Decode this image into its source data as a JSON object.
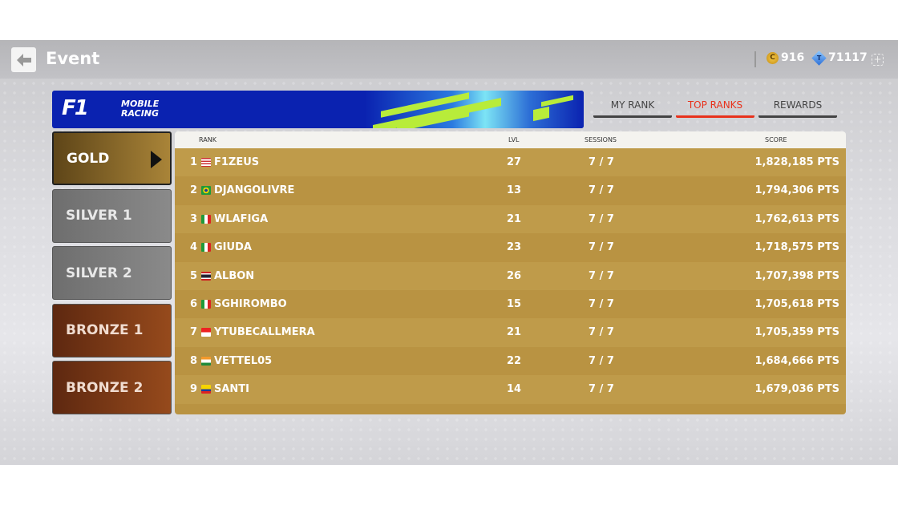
{
  "header": {
    "title": "Event",
    "coins": "916",
    "tokens": "71117",
    "coin_icon": "coin-icon",
    "token_icon": "token-icon"
  },
  "banner": {
    "logo_text": "F1 MOBILE RACING"
  },
  "tabs": [
    {
      "label": "MY RANK",
      "active": false
    },
    {
      "label": "TOP RANKS",
      "active": true
    },
    {
      "label": "REWARDS",
      "active": false
    }
  ],
  "accent": "#e8321c",
  "tiers": [
    {
      "label": "GOLD",
      "selected": true
    },
    {
      "label": "SILVER 1"
    },
    {
      "label": "SILVER 2"
    },
    {
      "label": "BRONZE 1"
    },
    {
      "label": "BRONZE 2"
    }
  ],
  "table": {
    "columns": {
      "rank": "RANK",
      "lvl": "LVL",
      "sessions": "SESSIONS",
      "score": "SCORE"
    },
    "rows": [
      {
        "rank": "1",
        "country": "US",
        "name": "F1ZEUS",
        "lvl": "27",
        "sessions": "7 / 7",
        "score": "1,828,185 PTS"
      },
      {
        "rank": "2",
        "country": "BR",
        "name": "DJANGOLIVRE",
        "lvl": "13",
        "sessions": "7 / 7",
        "score": "1,794,306 PTS"
      },
      {
        "rank": "3",
        "country": "IT",
        "name": "WLAFIGA",
        "lvl": "21",
        "sessions": "7 / 7",
        "score": "1,762,613 PTS"
      },
      {
        "rank": "4",
        "country": "IT",
        "name": "GIUDA",
        "lvl": "23",
        "sessions": "7 / 7",
        "score": "1,718,575 PTS"
      },
      {
        "rank": "5",
        "country": "TH",
        "name": "ALBON",
        "lvl": "26",
        "sessions": "7 / 7",
        "score": "1,707,398 PTS"
      },
      {
        "rank": "6",
        "country": "IT",
        "name": "SGHIROMBO",
        "lvl": "15",
        "sessions": "7 / 7",
        "score": "1,705,618 PTS"
      },
      {
        "rank": "7",
        "country": "ID",
        "name": "YTUBECALLMERA",
        "lvl": "21",
        "sessions": "7 / 7",
        "score": "1,705,359 PTS"
      },
      {
        "rank": "8",
        "country": "IN",
        "name": "VETTEL05",
        "lvl": "22",
        "sessions": "7 / 7",
        "score": "1,684,666 PTS"
      },
      {
        "rank": "9",
        "country": "CO",
        "name": "SANTI",
        "lvl": "14",
        "sessions": "7 / 7",
        "score": "1,679,036 PTS"
      }
    ]
  }
}
